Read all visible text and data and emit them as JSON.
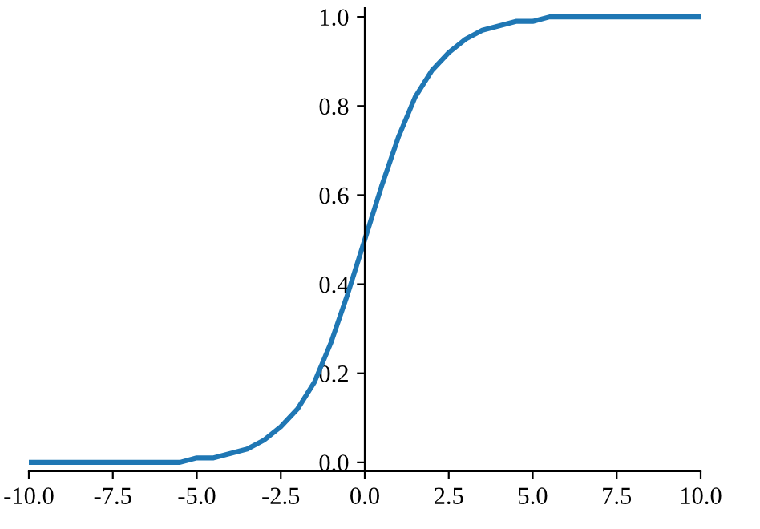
{
  "chart_data": {
    "type": "line",
    "x": [
      -10,
      -9.5,
      -9,
      -8.5,
      -8,
      -7.5,
      -7,
      -6.5,
      -6,
      -5.5,
      -5,
      -4.5,
      -4,
      -3.5,
      -3,
      -2.5,
      -2,
      -1.5,
      -1,
      -0.5,
      0,
      0.5,
      1,
      1.5,
      2,
      2.5,
      3,
      3.5,
      4,
      4.5,
      5,
      5.5,
      6,
      6.5,
      7,
      7.5,
      8,
      8.5,
      9,
      9.5,
      10
    ],
    "series": [
      {
        "color": "#1f77b4",
        "values": [
          0.0,
          0.0,
          0.0,
          0.0,
          0.0,
          0.0,
          0.0,
          0.0,
          0.0,
          0.0,
          0.01,
          0.01,
          0.02,
          0.03,
          0.05,
          0.08,
          0.12,
          0.18,
          0.27,
          0.38,
          0.5,
          0.62,
          0.73,
          0.82,
          0.88,
          0.92,
          0.95,
          0.97,
          0.98,
          0.99,
          0.99,
          1.0,
          1.0,
          1.0,
          1.0,
          1.0,
          1.0,
          1.0,
          1.0,
          1.0,
          1.0
        ]
      }
    ],
    "xlim": [
      -10,
      10
    ],
    "ylim": [
      -0.02,
      1.02
    ],
    "xticks": [
      {
        "value": -10,
        "label": "-10.0"
      },
      {
        "value": -7.5,
        "label": "-7.5"
      },
      {
        "value": -5,
        "label": "-5.0"
      },
      {
        "value": -2.5,
        "label": "-2.5"
      },
      {
        "value": 0,
        "label": "0.0"
      },
      {
        "value": 2.5,
        "label": "2.5"
      },
      {
        "value": 5,
        "label": "5.0"
      },
      {
        "value": 7.5,
        "label": "7.5"
      },
      {
        "value": 10,
        "label": "10.0"
      }
    ],
    "yticks": [
      {
        "value": 0,
        "label": "0.0"
      },
      {
        "value": 0.2,
        "label": "0.2"
      },
      {
        "value": 0.4,
        "label": "0.4"
      },
      {
        "value": 0.6,
        "label": "0.6"
      },
      {
        "value": 0.8,
        "label": "0.8"
      },
      {
        "value": 1,
        "label": "1.0"
      }
    ],
    "grid": false,
    "legend": false,
    "marker": "none",
    "line_style": "solid"
  }
}
